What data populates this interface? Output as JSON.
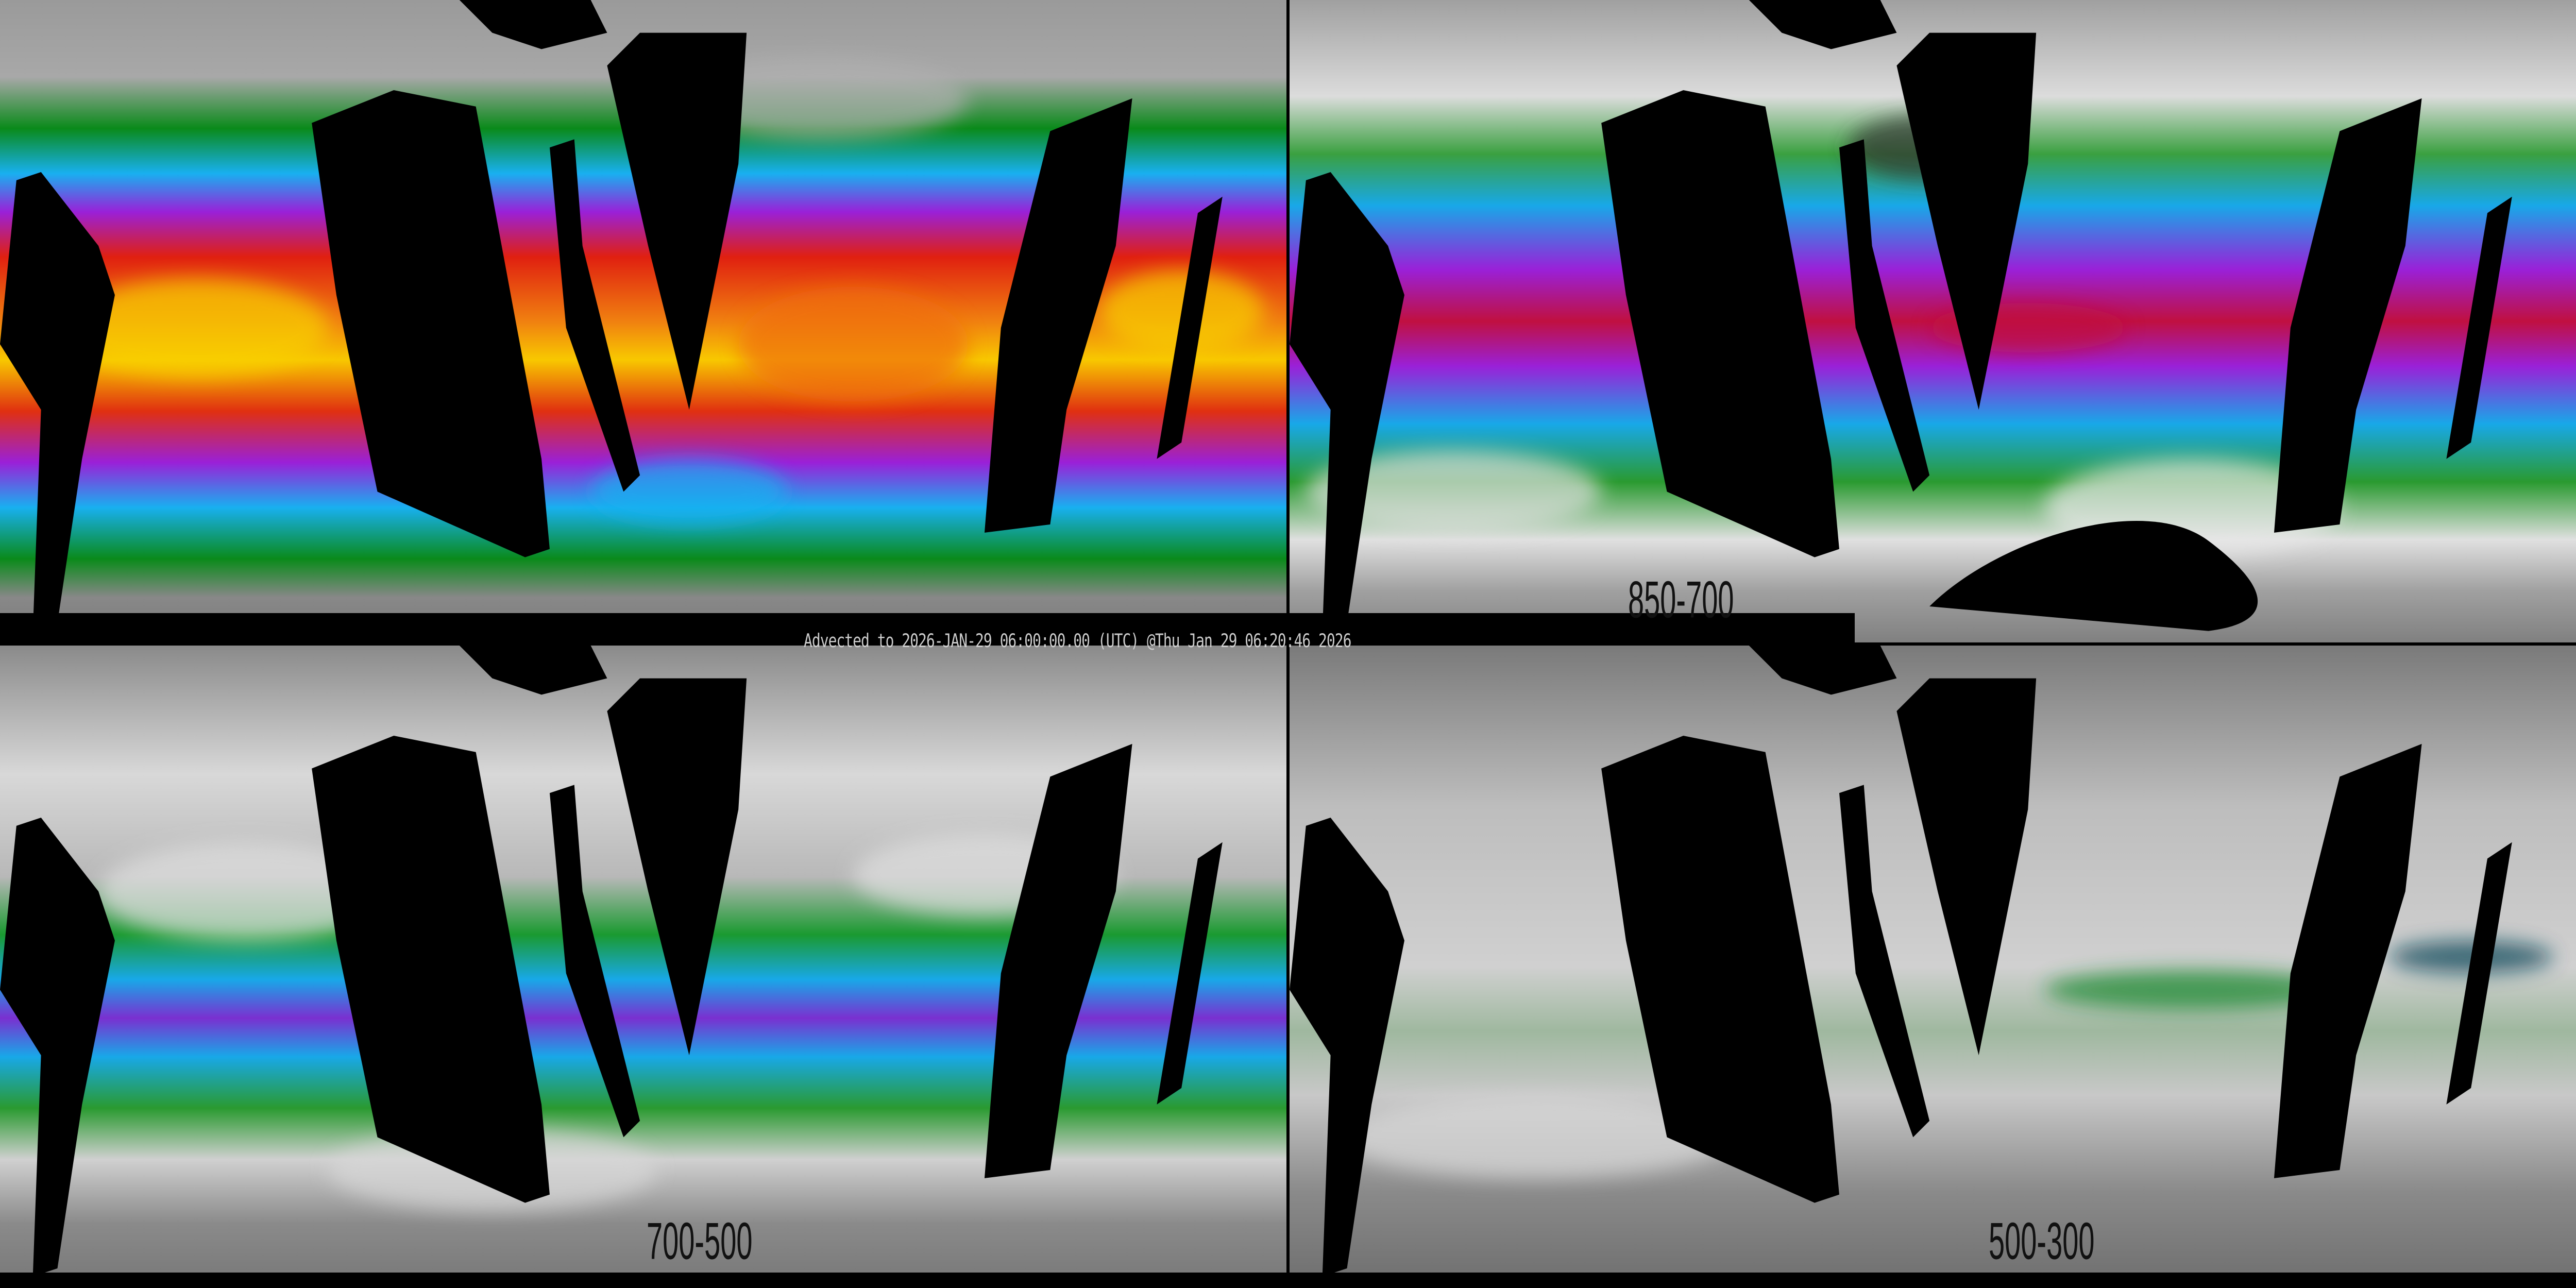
{
  "info_bar": {
    "text": "Advected to 2026-JAN-29 06:00:00.00 (UTC) @Thu Jan 29 06:20:46 2026"
  },
  "panels": [
    {
      "id": "top-left",
      "label": "",
      "palette": [
        "#0a8a1a",
        "#18b0f0",
        "#9a20d8",
        "#e02010",
        "#f07010",
        "#f8d000"
      ]
    },
    {
      "id": "top-right",
      "label": "850-700",
      "palette": [
        "#e0e0e0",
        "#0a8a1a",
        "#18b0f0",
        "#9a20d8",
        "#c01040"
      ]
    },
    {
      "id": "bottom-left",
      "label": "700-500",
      "palette": [
        "#d8d8d8",
        "#0a8a1a",
        "#18b0f0",
        "#9a20d8"
      ]
    },
    {
      "id": "bottom-right",
      "label": "500-300",
      "palette": [
        "#909090",
        "#d0d0d0",
        "#0a8a1a",
        "#0a4a5a"
      ]
    }
  ],
  "colors": {
    "background": "#000000",
    "no_data": "#000000",
    "coastline": "#000000",
    "text": "#cccccc"
  }
}
